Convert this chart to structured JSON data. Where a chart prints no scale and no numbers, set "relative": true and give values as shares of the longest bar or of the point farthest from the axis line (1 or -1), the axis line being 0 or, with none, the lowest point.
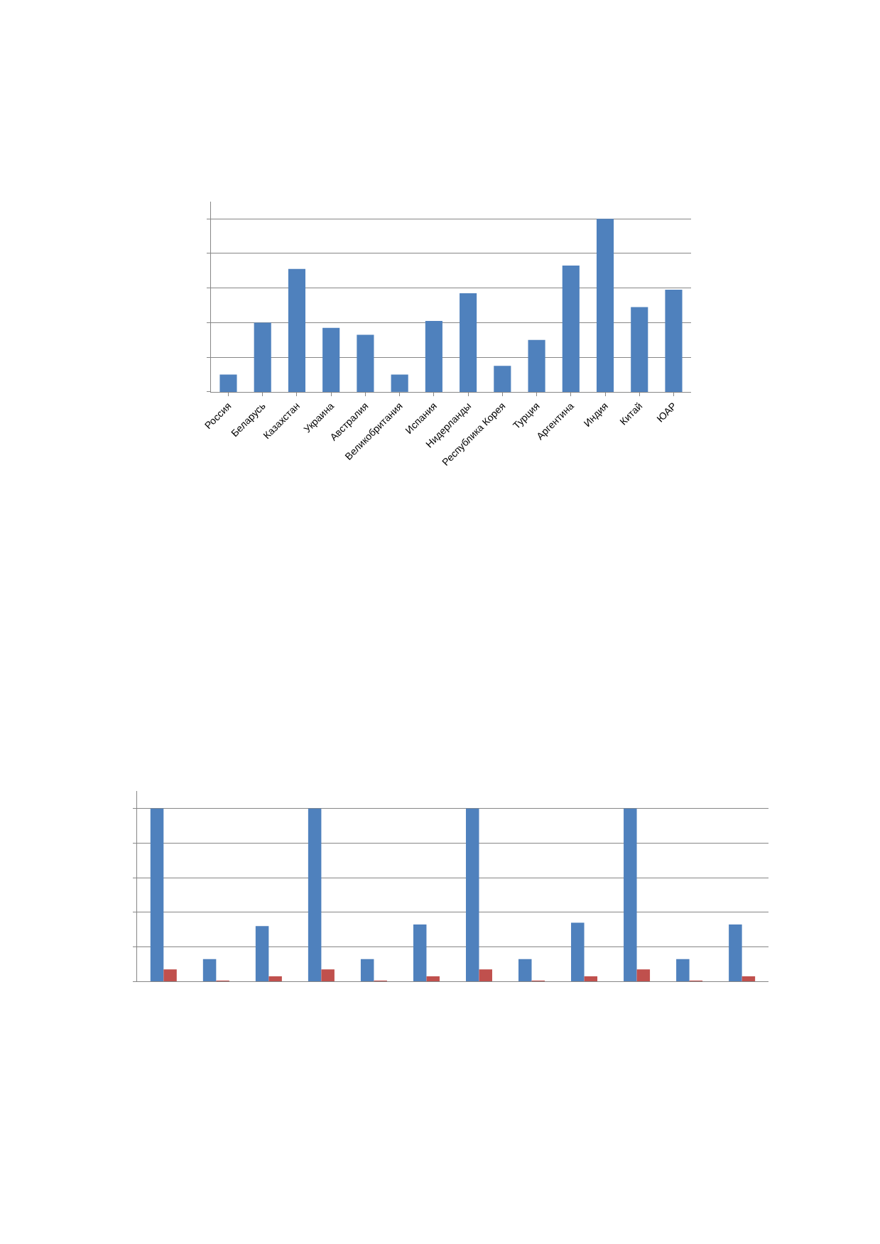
{
  "chart_data": [
    {
      "type": "bar",
      "relative": true,
      "grid": "y",
      "legend": false,
      "categories": [
        "Россия",
        "Беларусь",
        "Казахстан",
        "Украина",
        "Австралия",
        "Великобритания",
        "Испания",
        "Нидерланды",
        "Республика Корея",
        "Турция",
        "Аргентина",
        "Индия",
        "Китай",
        "ЮАР"
      ],
      "series": [
        {
          "color": "#4f81bd",
          "values": [
            0.1,
            0.4,
            0.71,
            0.37,
            0.33,
            0.1,
            0.41,
            0.57,
            0.15,
            0.3,
            0.73,
            1,
            0.49,
            0.59
          ]
        }
      ]
    },
    {
      "type": "bar",
      "relative": true,
      "grid": "y",
      "categories": [
        null,
        null,
        null,
        null,
        null,
        null,
        null,
        null,
        null,
        null,
        null,
        null
      ],
      "series": [
        {
          "color": "#4f81bd",
          "values": [
            1,
            0.13,
            0.32,
            1,
            0.13,
            0.33,
            1,
            0.13,
            0.34,
            1,
            0.13,
            0.33
          ]
        },
        {
          "color": "#c0504d",
          "values": [
            0.07,
            0.005,
            0.03,
            0.07,
            0.005,
            0.03,
            0.07,
            0.005,
            0.03,
            0.07,
            0.005,
            0.03
          ]
        }
      ]
    }
  ]
}
